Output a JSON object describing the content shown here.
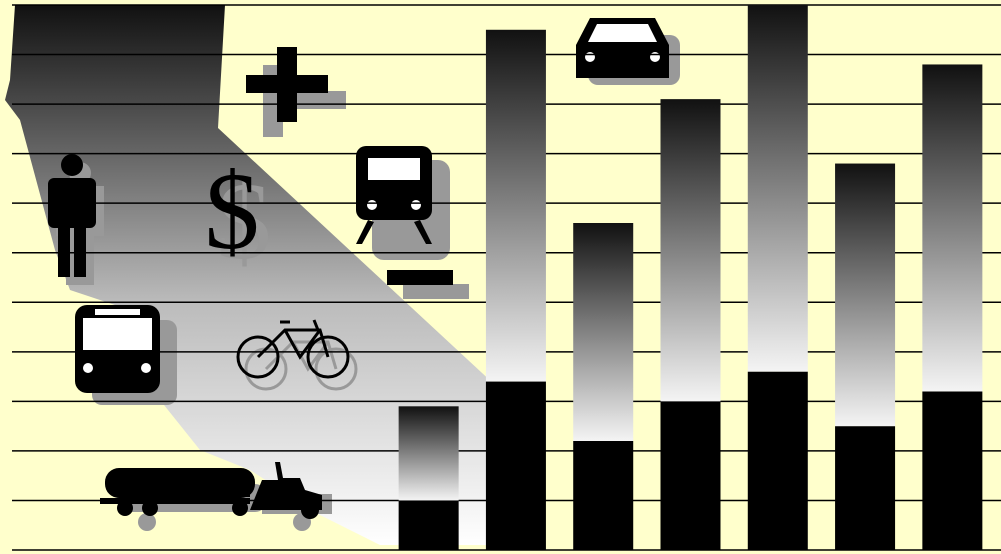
{
  "chart_data": {
    "type": "stacked_bar",
    "annotation": "$",
    "categories": [
      null,
      null,
      null,
      null,
      null,
      null,
      null
    ],
    "series": [
      {
        "color": "#000000",
        "values": [
          1.0,
          3.4,
          2.2,
          3.0,
          3.6,
          2.5,
          3.2
        ]
      },
      {
        "color": "#111111",
        "gradient": true,
        "values": [
          1.9,
          7.1,
          4.4,
          6.1,
          7.4,
          5.3,
          6.6
        ]
      }
    ],
    "ylim": [
      0,
      11
    ],
    "yticks": [
      0,
      1,
      2,
      3,
      4,
      5,
      6,
      7,
      8,
      9,
      10,
      11
    ],
    "grid": true
  }
}
